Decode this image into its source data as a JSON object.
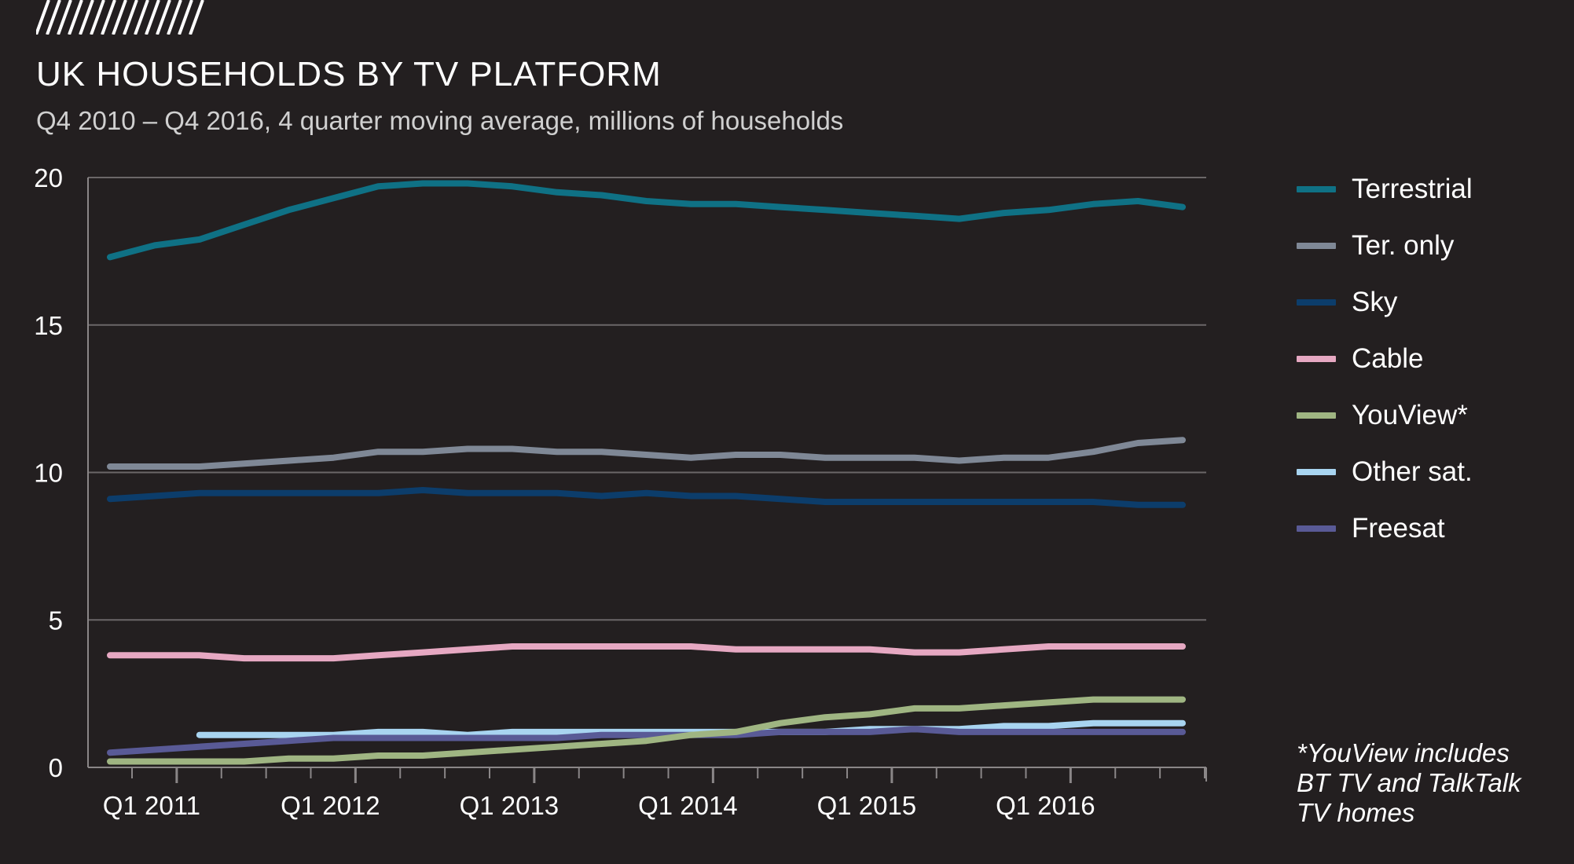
{
  "title": "UK HOUSEHOLDS BY TV PLATFORM",
  "subtitle": "Q4 2010 – Q4 2016, 4 quarter moving average, millions of households",
  "footnote": "*YouView includes BT TV and TalkTalk TV homes",
  "chart_data": {
    "type": "line",
    "title": "UK HOUSEHOLDS BY TV PLATFORM",
    "subtitle": "Q4 2010 – Q4 2016, 4 quarter moving average, millions of households",
    "x": [
      "Q4 2010",
      "Q1 2011",
      "Q2 2011",
      "Q3 2011",
      "Q4 2011",
      "Q1 2012",
      "Q2 2012",
      "Q3 2012",
      "Q4 2012",
      "Q1 2013",
      "Q2 2013",
      "Q3 2013",
      "Q4 2013",
      "Q1 2014",
      "Q2 2014",
      "Q3 2014",
      "Q4 2014",
      "Q1 2015",
      "Q2 2015",
      "Q3 2015",
      "Q4 2015",
      "Q1 2016",
      "Q2 2016",
      "Q3 2016",
      "Q4 2016"
    ],
    "xtick_labels": [
      "Q1 2011",
      "Q1 2012",
      "Q1 2013",
      "Q1 2014",
      "Q1 2015",
      "Q1 2016"
    ],
    "ylim": [
      0,
      20
    ],
    "yticks": [
      0,
      5,
      10,
      15,
      20
    ],
    "grid": true,
    "legend_position": "right",
    "series": [
      {
        "name": "Terrestrial",
        "color": "#0f7185",
        "values": [
          17.3,
          17.7,
          17.9,
          18.4,
          18.9,
          19.3,
          19.7,
          19.8,
          19.8,
          19.7,
          19.5,
          19.4,
          19.2,
          19.1,
          19.1,
          19.0,
          18.9,
          18.8,
          18.7,
          18.6,
          18.8,
          18.9,
          19.1,
          19.2,
          19.0
        ]
      },
      {
        "name": "Ter. only",
        "color": "#7f8896",
        "values": [
          10.2,
          10.2,
          10.2,
          10.3,
          10.4,
          10.5,
          10.7,
          10.7,
          10.8,
          10.8,
          10.7,
          10.7,
          10.6,
          10.5,
          10.6,
          10.6,
          10.5,
          10.5,
          10.5,
          10.4,
          10.5,
          10.5,
          10.7,
          11.0,
          11.1
        ]
      },
      {
        "name": "Sky",
        "color": "#0c3d6b",
        "values": [
          9.1,
          9.2,
          9.3,
          9.3,
          9.3,
          9.3,
          9.3,
          9.4,
          9.3,
          9.3,
          9.3,
          9.2,
          9.3,
          9.2,
          9.2,
          9.1,
          9.0,
          9.0,
          9.0,
          9.0,
          9.0,
          9.0,
          9.0,
          8.9,
          8.9
        ]
      },
      {
        "name": "Cable",
        "color": "#e6a8c2",
        "values": [
          3.8,
          3.8,
          3.8,
          3.7,
          3.7,
          3.7,
          3.8,
          3.9,
          4.0,
          4.1,
          4.1,
          4.1,
          4.1,
          4.1,
          4.0,
          4.0,
          4.0,
          4.0,
          3.9,
          3.9,
          4.0,
          4.1,
          4.1,
          4.1,
          4.1
        ]
      },
      {
        "name": "YouView*",
        "color": "#9fb582",
        "values": [
          0.2,
          0.2,
          0.2,
          0.2,
          0.3,
          0.3,
          0.4,
          0.4,
          0.5,
          0.6,
          0.7,
          0.8,
          0.9,
          1.1,
          1.2,
          1.5,
          1.7,
          1.8,
          2.0,
          2.0,
          2.1,
          2.2,
          2.3,
          2.3,
          2.3
        ]
      },
      {
        "name": "Other sat.",
        "color": "#a8d4f0",
        "values": [
          null,
          null,
          1.1,
          1.1,
          1.1,
          1.1,
          1.2,
          1.2,
          1.1,
          1.2,
          1.2,
          1.2,
          1.2,
          1.2,
          1.2,
          1.2,
          1.2,
          1.3,
          1.3,
          1.3,
          1.4,
          1.4,
          1.5,
          1.5,
          1.5
        ]
      },
      {
        "name": "Freesat",
        "color": "#595a96",
        "values": [
          0.5,
          0.6,
          0.7,
          0.8,
          0.9,
          1.0,
          1.0,
          1.0,
          1.0,
          1.0,
          1.0,
          1.1,
          1.1,
          1.1,
          1.1,
          1.2,
          1.2,
          1.2,
          1.3,
          1.2,
          1.2,
          1.2,
          1.2,
          1.2,
          1.2
        ]
      }
    ]
  }
}
